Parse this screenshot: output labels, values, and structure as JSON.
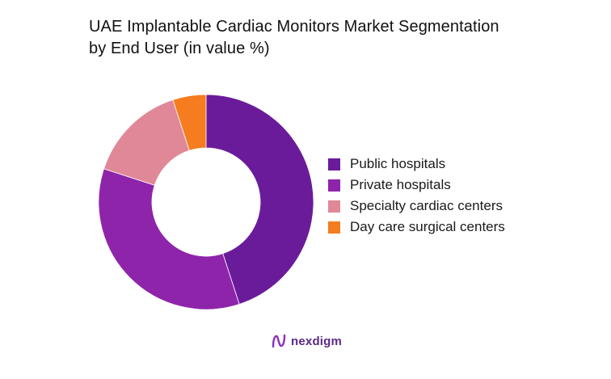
{
  "title": {
    "line1": "UAE Implantable Cardiac Monitors Market Segmentation",
    "line2": "by End User (in value %)"
  },
  "chart_data": {
    "type": "pie",
    "style": "donut",
    "title": "UAE Implantable Cardiac Monitors Market Segmentation by End User (in value %)",
    "categories": [
      "Public hospitals",
      "Private hospitals",
      "Specialty cardiac centers",
      "Day care surgical centers"
    ],
    "values": [
      45,
      35,
      15,
      5
    ],
    "colors": [
      "#6a1b9a",
      "#8e24aa",
      "#e08898",
      "#f57c1f"
    ],
    "legend_position": "right"
  },
  "logo": {
    "text": "nexdigm",
    "icon": "nexdigm-logo-icon"
  }
}
